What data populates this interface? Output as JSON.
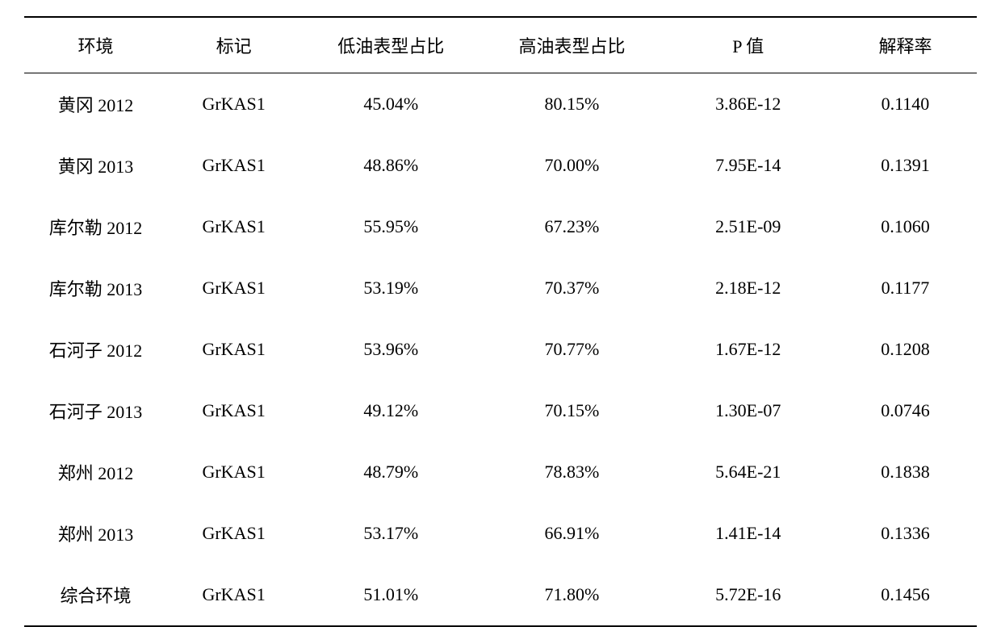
{
  "table": {
    "columns": [
      {
        "key": "environment",
        "label": "环境",
        "class": "col-env"
      },
      {
        "key": "marker",
        "label": "标记",
        "class": "col-marker"
      },
      {
        "key": "low_oil_pct",
        "label": "低油表型占比",
        "class": "col-low"
      },
      {
        "key": "high_oil_pct",
        "label": "高油表型占比",
        "class": "col-high"
      },
      {
        "key": "p_value",
        "label": "P 值",
        "class": "col-pval"
      },
      {
        "key": "explain_rate",
        "label": "解释率",
        "class": "col-expl"
      }
    ],
    "rows": [
      {
        "environment": "黄冈 2012",
        "marker": "GrKAS1",
        "low_oil_pct": "45.04%",
        "high_oil_pct": "80.15%",
        "p_value": "3.86E-12",
        "explain_rate": "0.1140"
      },
      {
        "environment": "黄冈 2013",
        "marker": "GrKAS1",
        "low_oil_pct": "48.86%",
        "high_oil_pct": "70.00%",
        "p_value": "7.95E-14",
        "explain_rate": "0.1391"
      },
      {
        "environment": "库尔勒 2012",
        "marker": "GrKAS1",
        "low_oil_pct": "55.95%",
        "high_oil_pct": "67.23%",
        "p_value": "2.51E-09",
        "explain_rate": "0.1060"
      },
      {
        "environment": "库尔勒 2013",
        "marker": "GrKAS1",
        "low_oil_pct": "53.19%",
        "high_oil_pct": "70.37%",
        "p_value": "2.18E-12",
        "explain_rate": "0.1177"
      },
      {
        "environment": "石河子 2012",
        "marker": "GrKAS1",
        "low_oil_pct": "53.96%",
        "high_oil_pct": "70.77%",
        "p_value": "1.67E-12",
        "explain_rate": "0.1208"
      },
      {
        "environment": "石河子 2013",
        "marker": "GrKAS1",
        "low_oil_pct": "49.12%",
        "high_oil_pct": "70.15%",
        "p_value": "1.30E-07",
        "explain_rate": "0.0746"
      },
      {
        "environment": "郑州 2012",
        "marker": "GrKAS1",
        "low_oil_pct": "48.79%",
        "high_oil_pct": "78.83%",
        "p_value": "5.64E-21",
        "explain_rate": "0.1838"
      },
      {
        "environment": "郑州 2013",
        "marker": "GrKAS1",
        "low_oil_pct": "53.17%",
        "high_oil_pct": "66.91%",
        "p_value": "1.41E-14",
        "explain_rate": "0.1336"
      },
      {
        "environment": "综合环境",
        "marker": "GrKAS1",
        "low_oil_pct": "51.01%",
        "high_oil_pct": "71.80%",
        "p_value": "5.72E-16",
        "explain_rate": "0.1456"
      }
    ],
    "styling": {
      "background_color": "#ffffff",
      "text_color": "#000000",
      "border_color": "#000000",
      "header_border_top_width": 2,
      "header_border_bottom_width": 1.5,
      "body_border_bottom_width": 2,
      "header_fontsize": 22,
      "cell_fontsize": 22,
      "header_padding_v": 18,
      "cell_padding_v": 22,
      "font_family": "SimSun, 宋体, Times New Roman, serif",
      "text_align": "center"
    }
  }
}
